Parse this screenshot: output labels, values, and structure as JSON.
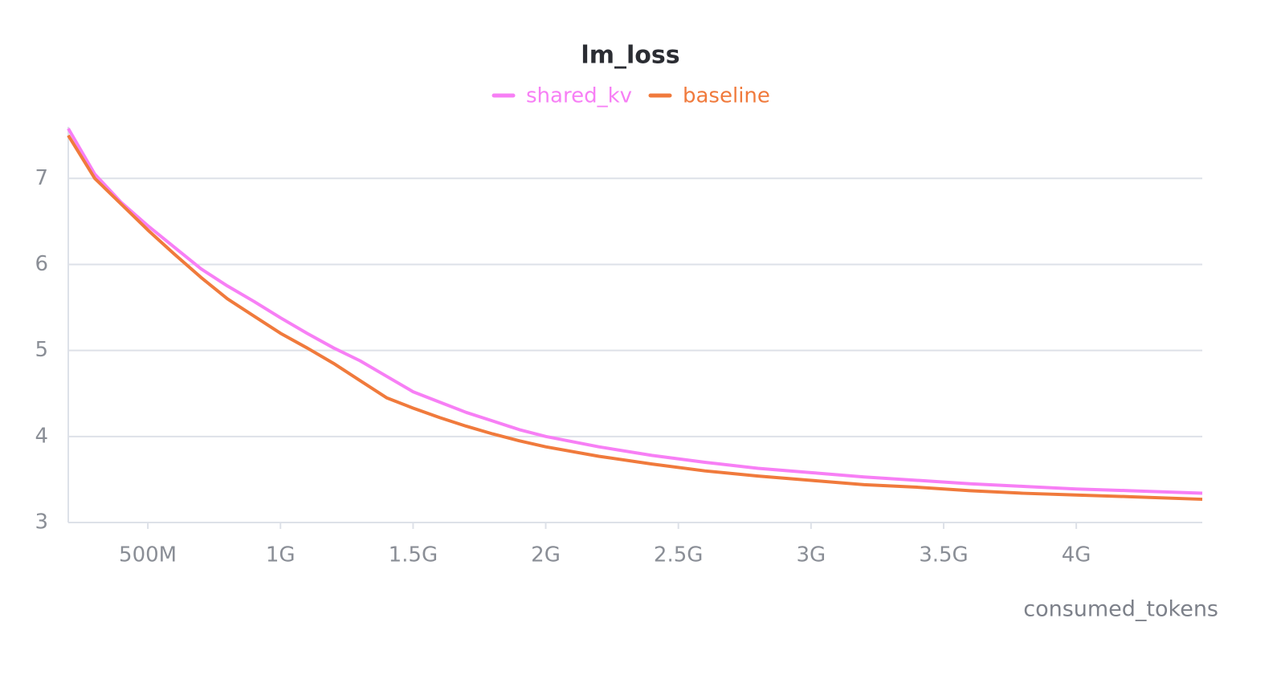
{
  "chart_data": {
    "type": "line",
    "title": "lm_loss",
    "x_label": "consumed_tokens",
    "x": [
      200000000,
      300000000,
      400000000,
      500000000,
      600000000,
      700000000,
      800000000,
      900000000,
      1000000000,
      1100000000,
      1200000000,
      1300000000,
      1400000000,
      1500000000,
      1600000000,
      1700000000,
      1800000000,
      1900000000,
      2000000000,
      2200000000,
      2400000000,
      2600000000,
      2800000000,
      3000000000,
      3200000000,
      3400000000,
      3600000000,
      3800000000,
      4000000000,
      4200000000,
      4475000000
    ],
    "series": [
      {
        "name": "shared_kv",
        "color": "#f77ff5",
        "values": [
          7.58,
          7.05,
          6.72,
          6.45,
          6.2,
          5.95,
          5.75,
          5.57,
          5.38,
          5.2,
          5.03,
          4.88,
          4.7,
          4.52,
          4.4,
          4.28,
          4.18,
          4.08,
          4.0,
          3.88,
          3.78,
          3.7,
          3.63,
          3.58,
          3.53,
          3.49,
          3.45,
          3.42,
          3.39,
          3.37,
          3.34
        ]
      },
      {
        "name": "baseline",
        "color": "#f07a3c",
        "values": [
          7.5,
          7.0,
          6.7,
          6.4,
          6.12,
          5.85,
          5.6,
          5.4,
          5.2,
          5.03,
          4.85,
          4.65,
          4.45,
          4.33,
          4.22,
          4.12,
          4.03,
          3.95,
          3.88,
          3.77,
          3.68,
          3.6,
          3.54,
          3.49,
          3.44,
          3.41,
          3.37,
          3.34,
          3.32,
          3.3,
          3.27
        ]
      }
    ],
    "xlim": [
      200000000,
      4475000000
    ],
    "xticks": [
      {
        "value": 500000000,
        "label": "500M"
      },
      {
        "value": 1000000000,
        "label": "1G"
      },
      {
        "value": 1500000000,
        "label": "1.5G"
      },
      {
        "value": 2000000000,
        "label": "2G"
      },
      {
        "value": 2500000000,
        "label": "2.5G"
      },
      {
        "value": 3000000000,
        "label": "3G"
      },
      {
        "value": 3500000000,
        "label": "3.5G"
      },
      {
        "value": 4000000000,
        "label": "4G"
      }
    ],
    "ylim": [
      3,
      7.6
    ],
    "yticks": [
      3,
      4,
      5,
      6,
      7
    ],
    "grid": true
  }
}
